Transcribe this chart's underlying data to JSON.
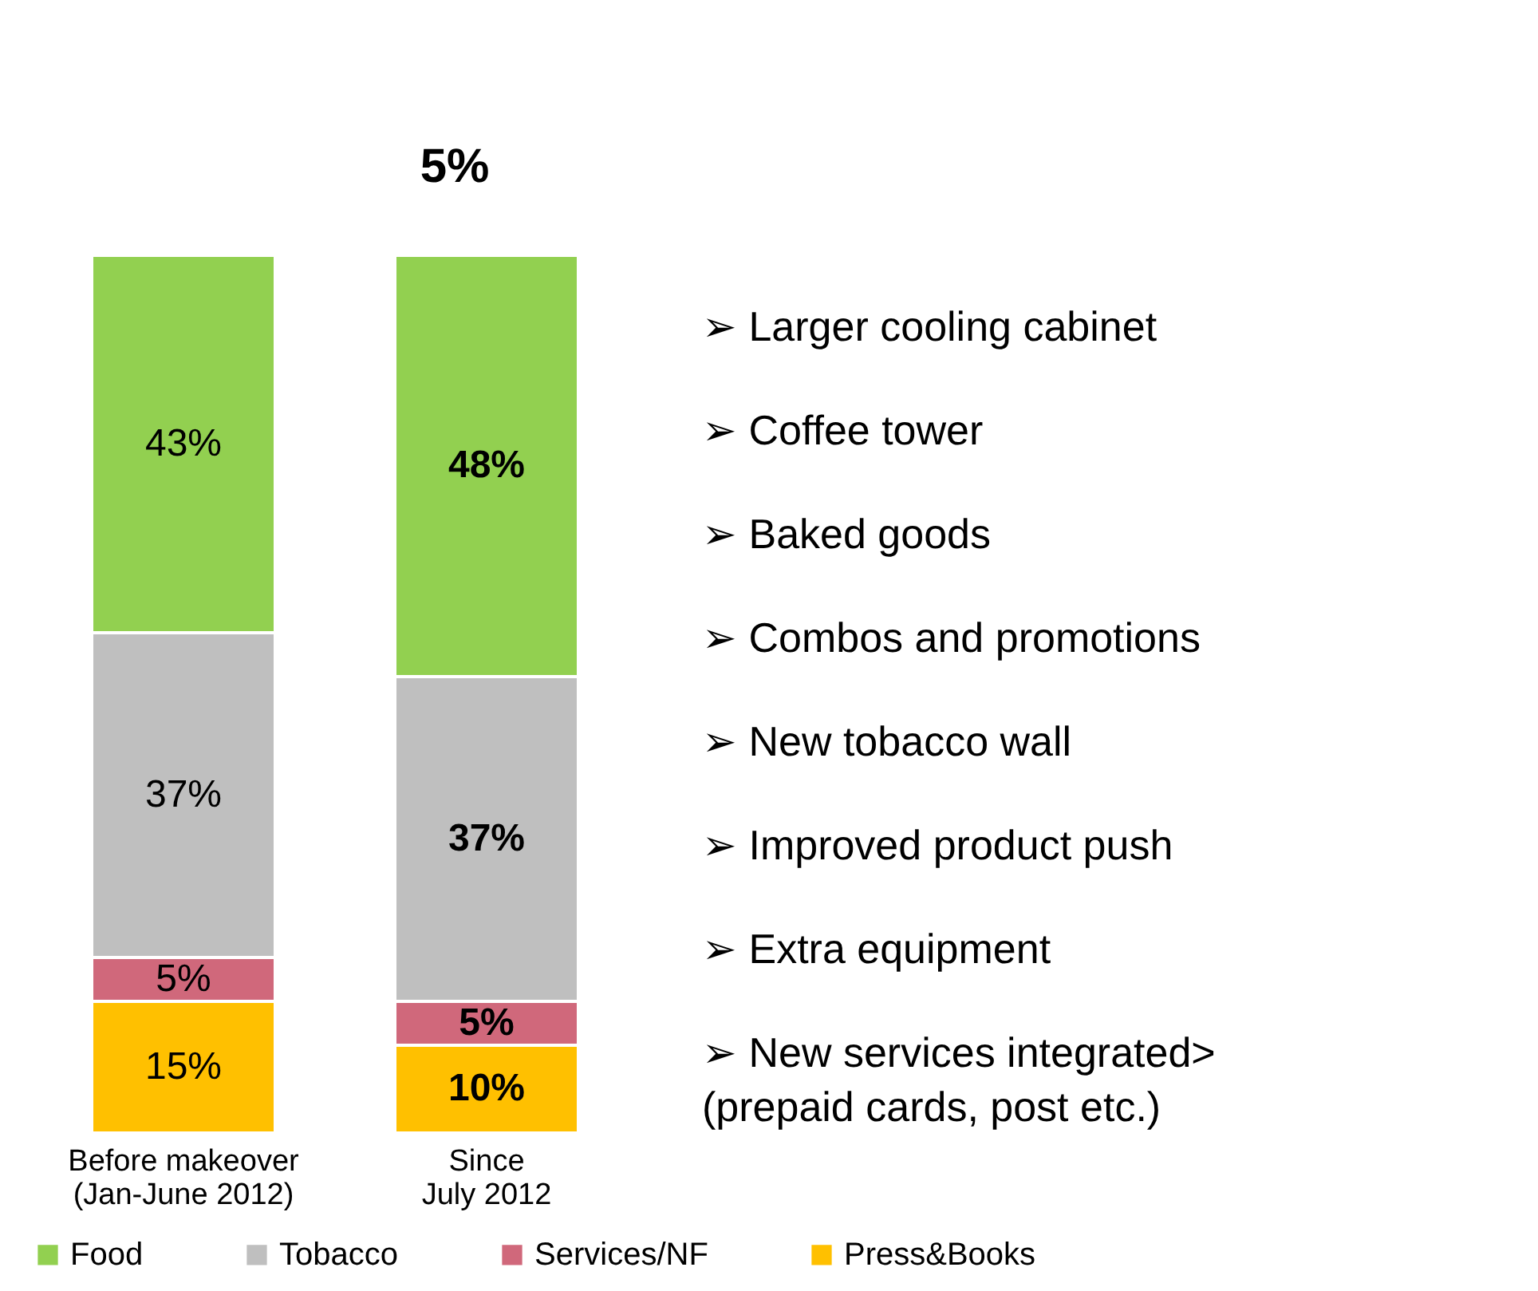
{
  "chart_data": {
    "type": "bar",
    "stacked": true,
    "legend": "bottom",
    "categories": [
      "Before makeover\n(Jan-June 2012)",
      "Since\nJuly 2012"
    ],
    "series": [
      {
        "name": "Press&Books",
        "color": "#ffc000",
        "values": [
          15,
          10
        ],
        "value_labels": [
          "15%",
          "10%"
        ]
      },
      {
        "name": "Services/NF",
        "color": "#d0687b",
        "values": [
          5,
          5
        ],
        "value_labels": [
          "5%",
          "5%"
        ]
      },
      {
        "name": "Tobacco",
        "color": "#bfbfbf",
        "values": [
          37,
          37
        ],
        "value_labels": [
          "37%",
          "37%"
        ]
      },
      {
        "name": "Food",
        "color": "#92d050",
        "values": [
          43,
          48
        ],
        "value_labels": [
          "43%",
          "48%"
        ]
      }
    ],
    "annotations": [
      "5%",
      "➢ Larger cooling cabinet",
      "➢ Coffee tower",
      "➢ Baked goods",
      "➢ Combos and promotions",
      "➢ New tobacco wall",
      "➢ Improved product push",
      "➢ Extra equipment",
      "➢ New services integrated>\n   (prepaid cards, post etc.)"
    ]
  }
}
